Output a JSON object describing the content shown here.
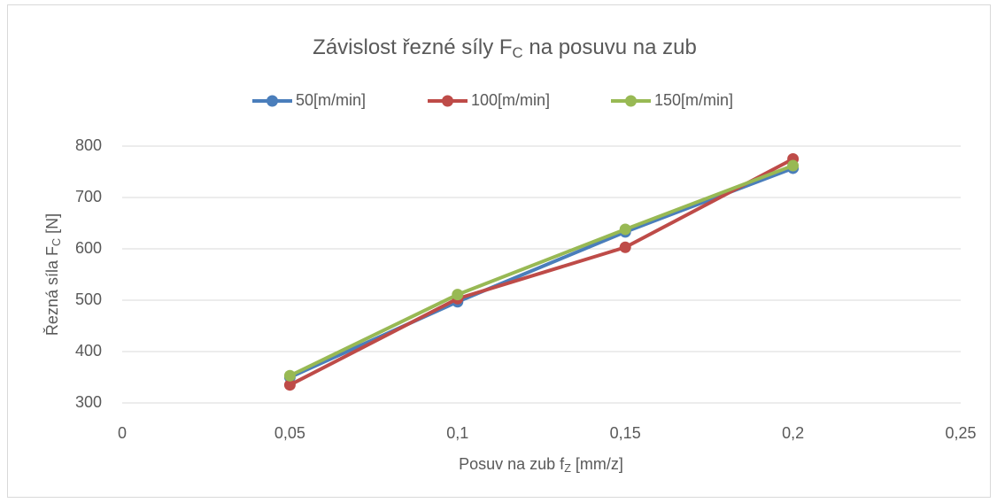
{
  "chart_data": {
    "type": "line",
    "title": [
      "Závislost řezné síly F",
      "C",
      " na posuvu na zub"
    ],
    "xlabel": [
      "Posuv na zub f",
      "Z",
      " [mm/z]"
    ],
    "ylabel": [
      "Řezná síla F",
      "C",
      " [N]"
    ],
    "x": [
      0.05,
      0.1,
      0.15,
      0.2
    ],
    "series": [
      {
        "name": "50[m/min]",
        "color": "#4a7ebb",
        "values": [
          350,
          497,
          633,
          757
        ]
      },
      {
        "name": "100[m/min]",
        "color": "#be4b48",
        "values": [
          335,
          503,
          603,
          775
        ]
      },
      {
        "name": "150[m/min]",
        "color": "#98b954",
        "values": [
          353,
          511,
          638,
          762
        ]
      }
    ],
    "xlim": [
      0,
      0.25
    ],
    "xticks": [
      0,
      {
        "value": 0.05,
        "label": "0,05"
      },
      {
        "value": 0.1,
        "label": "0,1"
      },
      {
        "value": 0.15,
        "label": "0,15"
      },
      {
        "value": 0.2,
        "label": "0,2"
      },
      {
        "value": 0.25,
        "label": "0,25"
      }
    ],
    "ylim": [
      300,
      800
    ],
    "yticks": [
      300,
      400,
      500,
      600,
      700,
      800
    ],
    "grid": true,
    "legend": "top"
  }
}
